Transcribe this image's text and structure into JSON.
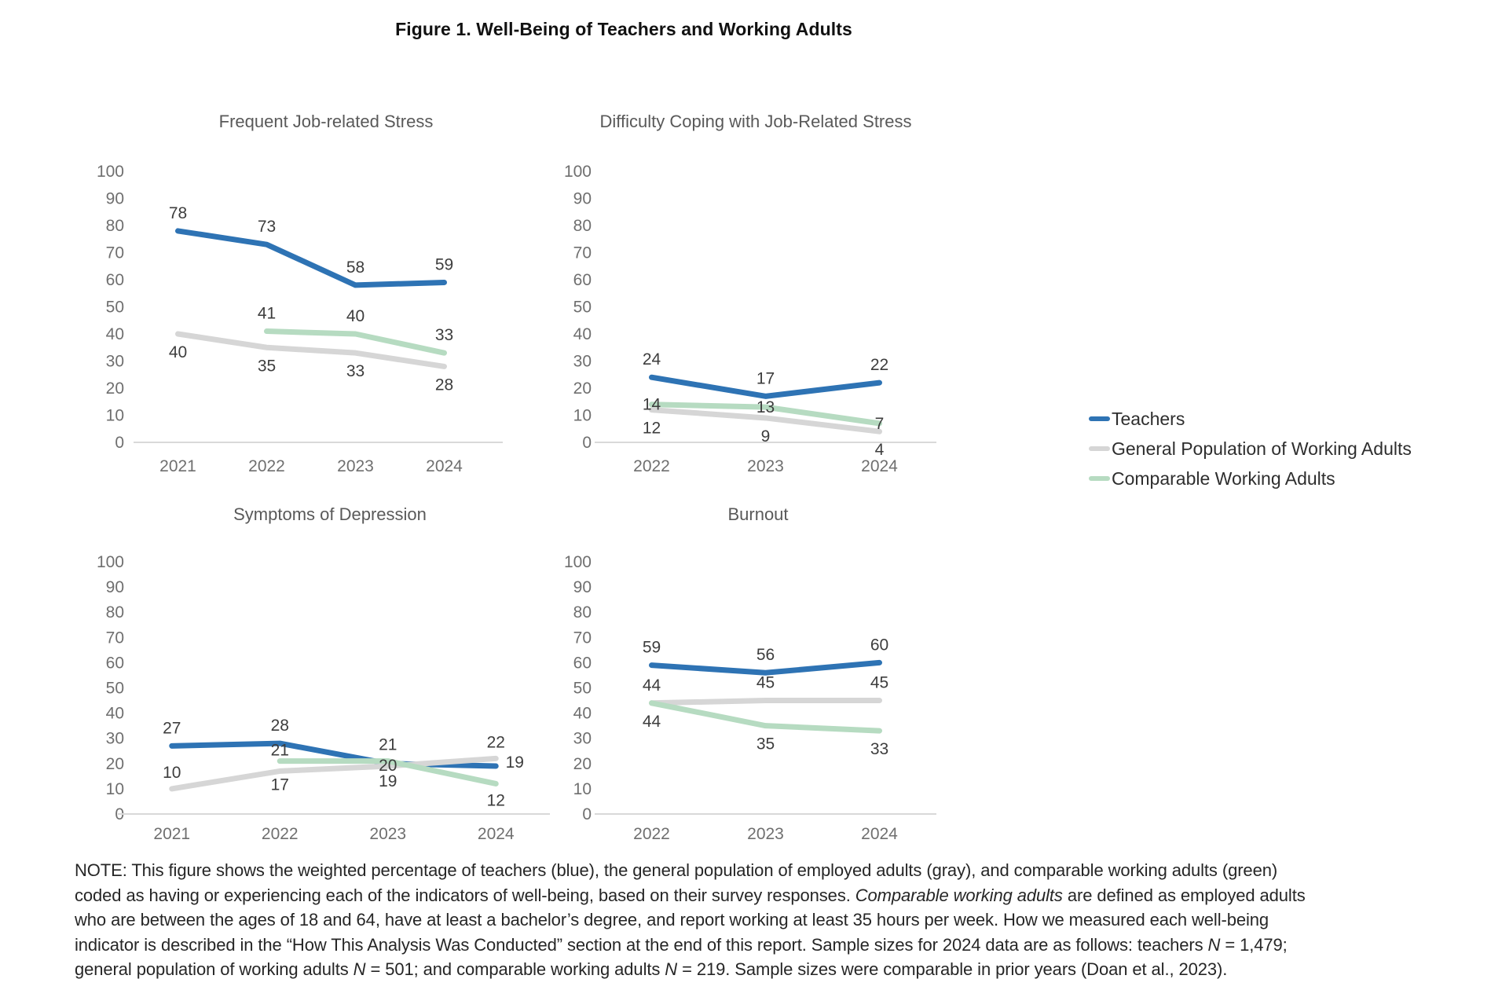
{
  "title": "Figure 1. Well-Being of Teachers and Working Adults",
  "legend": {
    "position": "right-middle",
    "items": [
      {
        "key": "teachers",
        "label": "Teachers",
        "color": "#2e73b4"
      },
      {
        "key": "general",
        "label": "General Population of Working Adults",
        "color": "#d6d6d6"
      },
      {
        "key": "comparable",
        "label": "Comparable Working Adults",
        "color": "#b6dbc1"
      }
    ]
  },
  "chart_data": [
    {
      "type": "line",
      "title": "Frequent Job-related Stress",
      "categories": [
        "2021",
        "2022",
        "2023",
        "2024"
      ],
      "xlabel": "",
      "ylabel": "",
      "ylim": [
        0,
        100
      ],
      "y_ticks": [
        0,
        10,
        20,
        30,
        40,
        50,
        60,
        70,
        80,
        90,
        100
      ],
      "grid": false,
      "series": [
        {
          "key": "teachers",
          "name": "Teachers",
          "values": [
            78,
            73,
            58,
            59
          ],
          "label_pos": [
            "a",
            "a",
            "a",
            "a"
          ]
        },
        {
          "key": "general",
          "name": "General Population of Working Adults",
          "values": [
            40,
            35,
            33,
            28
          ],
          "label_pos": [
            "b",
            "b",
            "b",
            "b"
          ]
        },
        {
          "key": "comparable",
          "name": "Comparable Working Adults",
          "values": [
            null,
            41,
            40,
            33
          ],
          "label_pos": [
            null,
            "a",
            "a",
            "a"
          ]
        }
      ]
    },
    {
      "type": "line",
      "title": "Difficulty Coping with Job-Related Stress",
      "categories": [
        "2022",
        "2023",
        "2024"
      ],
      "xlabel": "",
      "ylabel": "",
      "ylim": [
        0,
        100
      ],
      "y_ticks": [
        0,
        10,
        20,
        30,
        40,
        50,
        60,
        70,
        80,
        90,
        100
      ],
      "grid": false,
      "series": [
        {
          "key": "teachers",
          "name": "Teachers",
          "values": [
            24,
            17,
            22
          ],
          "label_pos": [
            "a",
            "a",
            "a"
          ]
        },
        {
          "key": "general",
          "name": "General Population of Working Adults",
          "values": [
            12,
            9,
            4
          ],
          "label_pos": [
            "b",
            "b",
            "b"
          ]
        },
        {
          "key": "comparable",
          "name": "Comparable Working Adults",
          "values": [
            14,
            13,
            7
          ],
          "label_pos": [
            "o",
            "o",
            "o"
          ]
        }
      ]
    },
    {
      "type": "line",
      "title": "Symptoms of Depression",
      "categories": [
        "2021",
        "2022",
        "2023",
        "2024"
      ],
      "xlabel": "",
      "ylabel": "",
      "ylim": [
        0,
        100
      ],
      "y_ticks": [
        0,
        10,
        20,
        30,
        40,
        50,
        60,
        70,
        80,
        90,
        100
      ],
      "grid": false,
      "series": [
        {
          "key": "teachers",
          "name": "Teachers",
          "values": [
            27,
            28,
            20,
            19
          ],
          "label_pos": [
            "a",
            "a",
            {
              "dy": 9
            },
            {
              "dx": 24,
              "dy": 2
            }
          ]
        },
        {
          "key": "general",
          "name": "General Population of Working Adults",
          "values": [
            10,
            17,
            19,
            22
          ],
          "label_pos": [
            {
              "dy": -14
            },
            {
              "dy": 24
            },
            {
              "dy": 26
            },
            {
              "dy": -14
            }
          ]
        },
        {
          "key": "comparable",
          "name": "Comparable Working Adults",
          "values": [
            null,
            21,
            21,
            12
          ],
          "label_pos": [
            null,
            {
              "dy": -7
            },
            {
              "dy": -14
            },
            {
              "dy": 28
            }
          ]
        }
      ]
    },
    {
      "type": "line",
      "title": "Burnout",
      "categories": [
        "2022",
        "2023",
        "2024"
      ],
      "xlabel": "",
      "ylabel": "",
      "ylim": [
        0,
        100
      ],
      "y_ticks": [
        0,
        10,
        20,
        30,
        40,
        50,
        60,
        70,
        80,
        90,
        100
      ],
      "grid": false,
      "series": [
        {
          "key": "teachers",
          "name": "Teachers",
          "values": [
            59,
            56,
            60
          ],
          "label_pos": [
            "a",
            "a",
            "a"
          ]
        },
        {
          "key": "general",
          "name": "General Population of Working Adults",
          "values": [
            44,
            45,
            45
          ],
          "label_pos": [
            "a",
            "a",
            "a"
          ]
        },
        {
          "key": "comparable",
          "name": "Comparable Working Adults",
          "values": [
            44,
            35,
            33
          ],
          "label_pos": [
            "b",
            "b",
            "b"
          ]
        }
      ]
    }
  ],
  "note": {
    "segments": [
      {
        "t": "NOTE: This figure shows the weighted percentage of teachers (blue), the general population of employed adults (gray), and comparable working adults (green)\ncoded as having or experiencing each of the indicators of well-being, based on their survey responses. "
      },
      {
        "t": "Comparable working adults",
        "i": true
      },
      {
        "t": " are defined as employed adults\nwho are between the ages of 18 and 64, have at least a bachelor’s degree, and report working at least 35 hours per week. How we measured each well-being\nindicator is described in the “How This Analysis Was Conducted” section at the end of this report. Sample sizes for 2024 data are as follows: teachers "
      },
      {
        "t": "N",
        "i": true
      },
      {
        "t": " = 1,479;\ngeneral population of working adults "
      },
      {
        "t": "N",
        "i": true
      },
      {
        "t": " = 501; and comparable working adults "
      },
      {
        "t": "N",
        "i": true
      },
      {
        "t": " = 219. Sample sizes were comparable in prior years (Doan et al., 2023)."
      }
    ]
  },
  "style": {
    "axis_line_color": "#d9d9d9",
    "tick_text_color": "#6f6f6f",
    "chart_title_color": "#595959",
    "data_label_color": "#3d3d3d"
  }
}
